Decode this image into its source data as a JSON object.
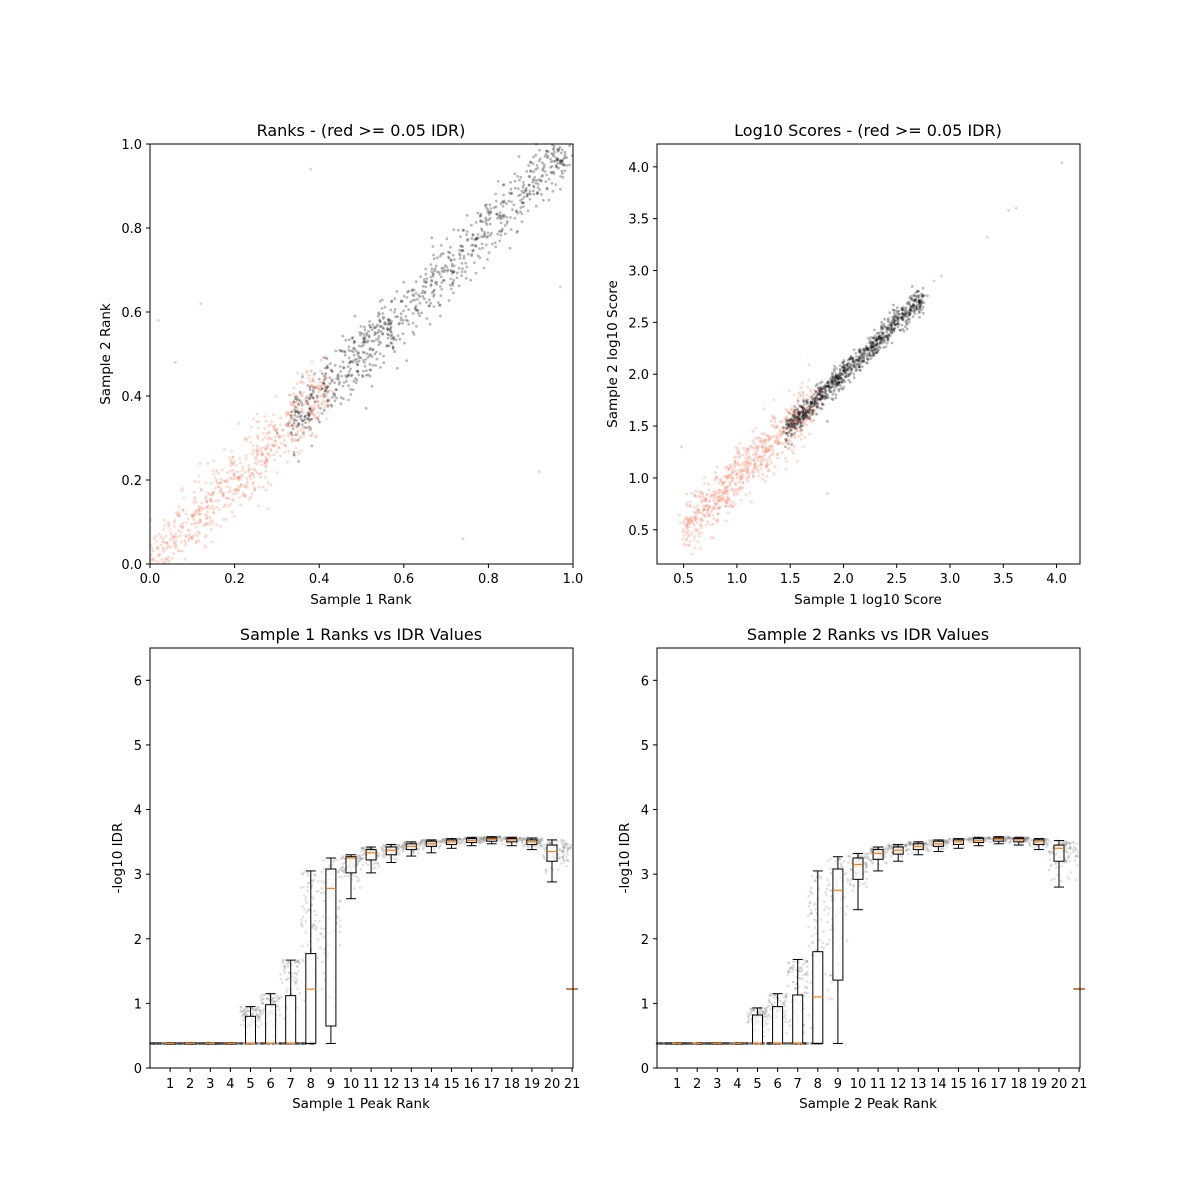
{
  "chart_data": [
    {
      "type": "scatter",
      "title": "Ranks - (red >= 0.05 IDR)",
      "xlabel": "Sample 1 Rank",
      "ylabel": "Sample 2 Rank",
      "xlim": [
        0.0,
        1.0
      ],
      "ylim": [
        0.0,
        1.0
      ],
      "xticks": [
        "0.0",
        "0.2",
        "0.4",
        "0.6",
        "0.8",
        "1.0"
      ],
      "yticks": [
        "0.0",
        "0.2",
        "0.4",
        "0.6",
        "0.8",
        "1.0"
      ],
      "colors": {
        "pass": "#000000",
        "fail": "#fa8064"
      },
      "series": [
        {
          "trend": "y ≈ x",
          "x_range": [
            0.33,
            1.0
          ],
          "spread": 0.035,
          "count": 900,
          "color": "#000000"
        },
        {
          "trend": "y ≈ x",
          "x_range": [
            0.0,
            0.42
          ],
          "spread": 0.04,
          "count": 700,
          "color": "#fa8064"
        }
      ],
      "outliers": [
        [
          0.02,
          0.58
        ],
        [
          0.06,
          0.48
        ],
        [
          0.38,
          0.94
        ],
        [
          0.97,
          0.66
        ],
        [
          0.92,
          0.22
        ],
        [
          0.74,
          0.06
        ],
        [
          0.12,
          0.62
        ]
      ]
    },
    {
      "type": "scatter",
      "title": "Log10 Scores - (red >= 0.05 IDR)",
      "xlabel": "Sample 1 log10 Score",
      "ylabel": "Sample 2 log10 Score",
      "xlim": [
        0.25,
        4.22
      ],
      "ylim": [
        0.17,
        4.22
      ],
      "xticks": [
        "0.5",
        "1.0",
        "1.5",
        "2.0",
        "2.5",
        "3.0",
        "3.5",
        "4.0"
      ],
      "yticks": [
        "0.5",
        "1.0",
        "1.5",
        "2.0",
        "2.5",
        "3.0",
        "3.5",
        "4.0"
      ],
      "colors": {
        "pass": "#000000",
        "fail": "#fa8064"
      },
      "series": [
        {
          "trend": "y ≈ x",
          "x_range": [
            1.45,
            2.75
          ],
          "spread": 0.06,
          "count": 900,
          "color": "#000000"
        },
        {
          "trend": "y ≈ x",
          "x_range": [
            0.5,
            1.75
          ],
          "spread": 0.12,
          "count": 700,
          "color": "#fa8064"
        }
      ],
      "outliers": [
        [
          3.35,
          3.32
        ],
        [
          3.55,
          3.58
        ],
        [
          3.62,
          3.6
        ],
        [
          4.05,
          4.04
        ],
        [
          2.85,
          2.9
        ],
        [
          2.92,
          2.95
        ],
        [
          0.48,
          1.3
        ],
        [
          1.85,
          0.85
        ]
      ]
    },
    {
      "type": "box",
      "title": "Sample 1 Ranks vs IDR Values",
      "xlabel": "Sample 1 Peak Rank",
      "ylabel": "-log10 IDR",
      "ylim": [
        0,
        6.5
      ],
      "yticks": [
        "0",
        "1",
        "2",
        "3",
        "4",
        "5",
        "6"
      ],
      "categories": [
        "1",
        "2",
        "3",
        "4",
        "5",
        "6",
        "7",
        "8",
        "9",
        "10",
        "11",
        "12",
        "13",
        "14",
        "15",
        "16",
        "17",
        "18",
        "19",
        "20",
        "21"
      ],
      "boxes": [
        {
          "whislo": 0.38,
          "q1": 0.38,
          "med": 0.38,
          "q3": 0.38,
          "whishi": 0.38
        },
        {
          "whislo": 0.38,
          "q1": 0.38,
          "med": 0.38,
          "q3": 0.38,
          "whishi": 0.38
        },
        {
          "whislo": 0.38,
          "q1": 0.38,
          "med": 0.38,
          "q3": 0.38,
          "whishi": 0.38
        },
        {
          "whislo": 0.38,
          "q1": 0.38,
          "med": 0.38,
          "q3": 0.38,
          "whishi": 0.38
        },
        {
          "whislo": 0.38,
          "q1": 0.38,
          "med": 0.38,
          "q3": 0.8,
          "whishi": 0.95
        },
        {
          "whislo": 0.38,
          "q1": 0.38,
          "med": 0.38,
          "q3": 0.98,
          "whishi": 1.15
        },
        {
          "whislo": 0.38,
          "q1": 0.38,
          "med": 0.38,
          "q3": 1.12,
          "whishi": 1.67
        },
        {
          "whislo": 0.38,
          "q1": 0.38,
          "med": 1.22,
          "q3": 1.77,
          "whishi": 3.05
        },
        {
          "whislo": 0.38,
          "q1": 0.65,
          "med": 2.78,
          "q3": 3.08,
          "whishi": 3.25
        },
        {
          "whislo": 2.62,
          "q1": 3.02,
          "med": 3.25,
          "q3": 3.27,
          "whishi": 3.3
        },
        {
          "whislo": 3.02,
          "q1": 3.22,
          "med": 3.33,
          "q3": 3.38,
          "whishi": 3.42
        },
        {
          "whislo": 3.18,
          "q1": 3.3,
          "med": 3.37,
          "q3": 3.42,
          "whishi": 3.46
        },
        {
          "whislo": 3.28,
          "q1": 3.38,
          "med": 3.43,
          "q3": 3.47,
          "whishi": 3.5
        },
        {
          "whislo": 3.33,
          "q1": 3.43,
          "med": 3.47,
          "q3": 3.51,
          "whishi": 3.53
        },
        {
          "whislo": 3.4,
          "q1": 3.46,
          "med": 3.5,
          "q3": 3.53,
          "whishi": 3.55
        },
        {
          "whislo": 3.44,
          "q1": 3.49,
          "med": 3.52,
          "q3": 3.55,
          "whishi": 3.57
        },
        {
          "whislo": 3.47,
          "q1": 3.51,
          "med": 3.54,
          "q3": 3.56,
          "whishi": 3.58
        },
        {
          "whislo": 3.44,
          "q1": 3.5,
          "med": 3.53,
          "q3": 3.55,
          "whishi": 3.57
        },
        {
          "whislo": 3.38,
          "q1": 3.46,
          "med": 3.5,
          "q3": 3.53,
          "whishi": 3.56
        },
        {
          "whislo": 2.88,
          "q1": 3.2,
          "med": 3.35,
          "q3": 3.45,
          "whishi": 3.53
        },
        {
          "whislo": 1.23,
          "q1": 1.23,
          "med": 1.23,
          "q3": 1.23,
          "whishi": 1.23
        }
      ]
    },
    {
      "type": "box",
      "title": "Sample 2 Ranks vs IDR Values",
      "xlabel": "Sample 2 Peak Rank",
      "ylabel": "-log10 IDR",
      "ylim": [
        0,
        6.5
      ],
      "yticks": [
        "0",
        "1",
        "2",
        "3",
        "4",
        "5",
        "6"
      ],
      "categories": [
        "1",
        "2",
        "3",
        "4",
        "5",
        "6",
        "7",
        "8",
        "9",
        "10",
        "11",
        "12",
        "13",
        "14",
        "15",
        "16",
        "17",
        "18",
        "19",
        "20",
        "21"
      ],
      "boxes": [
        {
          "whislo": 0.38,
          "q1": 0.38,
          "med": 0.38,
          "q3": 0.38,
          "whishi": 0.38
        },
        {
          "whislo": 0.38,
          "q1": 0.38,
          "med": 0.38,
          "q3": 0.38,
          "whishi": 0.38
        },
        {
          "whislo": 0.38,
          "q1": 0.38,
          "med": 0.38,
          "q3": 0.38,
          "whishi": 0.38
        },
        {
          "whislo": 0.38,
          "q1": 0.38,
          "med": 0.38,
          "q3": 0.38,
          "whishi": 0.38
        },
        {
          "whislo": 0.38,
          "q1": 0.38,
          "med": 0.38,
          "q3": 0.82,
          "whishi": 0.93
        },
        {
          "whislo": 0.38,
          "q1": 0.38,
          "med": 0.38,
          "q3": 0.95,
          "whishi": 1.15
        },
        {
          "whislo": 0.38,
          "q1": 0.38,
          "med": 0.38,
          "q3": 1.13,
          "whishi": 1.68
        },
        {
          "whislo": 0.38,
          "q1": 0.38,
          "med": 1.1,
          "q3": 1.8,
          "whishi": 3.05
        },
        {
          "whislo": 0.38,
          "q1": 1.36,
          "med": 2.75,
          "q3": 3.08,
          "whishi": 3.27
        },
        {
          "whislo": 2.45,
          "q1": 2.92,
          "med": 3.15,
          "q3": 3.25,
          "whishi": 3.32
        },
        {
          "whislo": 3.05,
          "q1": 3.23,
          "med": 3.32,
          "q3": 3.38,
          "whishi": 3.42
        },
        {
          "whislo": 3.2,
          "q1": 3.31,
          "med": 3.37,
          "q3": 3.42,
          "whishi": 3.46
        },
        {
          "whislo": 3.3,
          "q1": 3.38,
          "med": 3.43,
          "q3": 3.47,
          "whishi": 3.5
        },
        {
          "whislo": 3.35,
          "q1": 3.43,
          "med": 3.47,
          "q3": 3.51,
          "whishi": 3.53
        },
        {
          "whislo": 3.4,
          "q1": 3.46,
          "med": 3.5,
          "q3": 3.53,
          "whishi": 3.55
        },
        {
          "whislo": 3.44,
          "q1": 3.49,
          "med": 3.52,
          "q3": 3.55,
          "whishi": 3.57
        },
        {
          "whislo": 3.47,
          "q1": 3.51,
          "med": 3.54,
          "q3": 3.56,
          "whishi": 3.58
        },
        {
          "whislo": 3.45,
          "q1": 3.5,
          "med": 3.53,
          "q3": 3.55,
          "whishi": 3.57
        },
        {
          "whislo": 3.38,
          "q1": 3.46,
          "med": 3.5,
          "q3": 3.53,
          "whishi": 3.55
        },
        {
          "whislo": 2.8,
          "q1": 3.2,
          "med": 3.4,
          "q3": 3.45,
          "whishi": 3.52
        },
        {
          "whislo": 1.23,
          "q1": 1.23,
          "med": 1.23,
          "q3": 1.23,
          "whishi": 1.23
        }
      ]
    }
  ]
}
